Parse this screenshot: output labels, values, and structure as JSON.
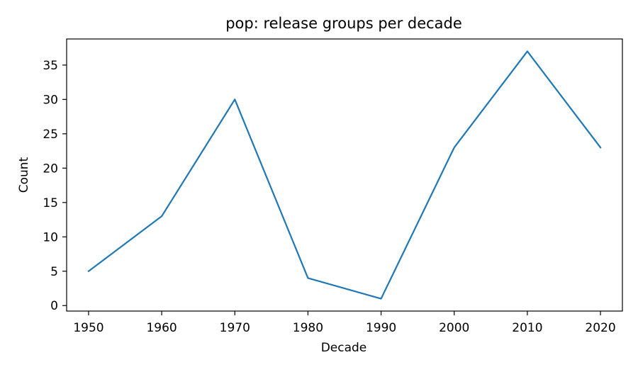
{
  "chart_data": {
    "type": "line",
    "title": "pop: release groups per decade",
    "xlabel": "Decade",
    "ylabel": "Count",
    "x": [
      1950,
      1960,
      1970,
      1980,
      1990,
      2000,
      2010,
      2020
    ],
    "series": [
      {
        "values": [
          5,
          13,
          30,
          4,
          1,
          23,
          37,
          23
        ],
        "color": "#1f77b4"
      }
    ],
    "xlim": [
      1947,
      2023
    ],
    "ylim": [
      -0.8,
      38.8
    ],
    "x_ticks": [
      "1950",
      "1960",
      "1970",
      "1980",
      "1990",
      "2000",
      "2010",
      "2020"
    ],
    "y_ticks": [
      "0",
      "5",
      "10",
      "15",
      "20",
      "25",
      "30",
      "35"
    ],
    "grid": false,
    "legend": "none"
  }
}
